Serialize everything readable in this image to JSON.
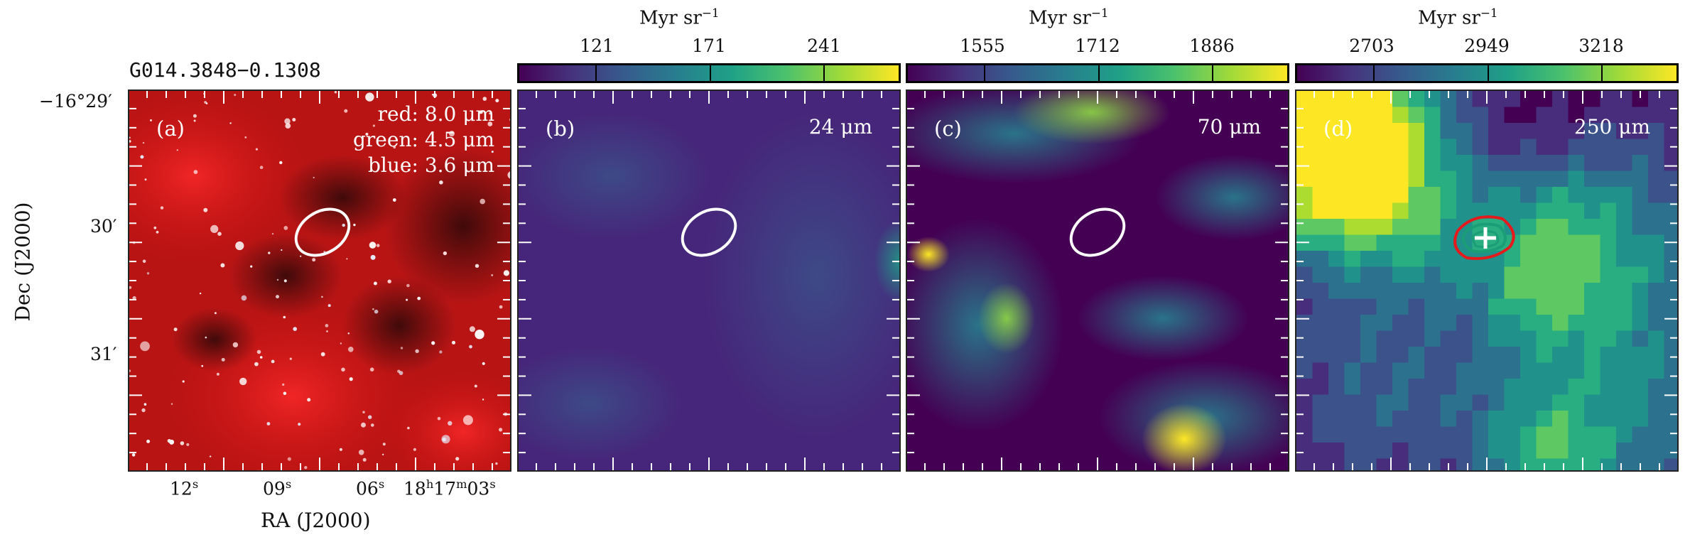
{
  "source_name": "G014.3848−0.1308",
  "axes": {
    "dec_title": "Dec (J2000)",
    "ra_title": "RA (J2000)",
    "dec_ticks": [
      {
        "label": "−16°29′"
      },
      {
        "label": "30′"
      },
      {
        "label": "31′"
      }
    ],
    "ra_ticks": [
      {
        "num": "12",
        "sup": "s",
        "rest": ""
      },
      {
        "num": "09",
        "sup": "s",
        "rest": ""
      },
      {
        "num": "06",
        "sup": "s",
        "rest": ""
      },
      {
        "num": "18",
        "sup": "h",
        "rest": "17",
        "sup2": "m",
        "rest2": "03",
        "sup3": "s"
      }
    ]
  },
  "panels": [
    {
      "letter": "(a)",
      "legend": [
        "red: 8.0 μm",
        "green: 4.5 μm",
        "blue: 3.6 μm"
      ]
    },
    {
      "letter": "(b)",
      "wavelength": "24 μm",
      "colorbar": {
        "unit": "Myr sr−1",
        "ticks": [
          "121",
          "171",
          "241"
        ]
      }
    },
    {
      "letter": "(c)",
      "wavelength": "70 μm",
      "colorbar": {
        "unit": "Myr sr−1",
        "ticks": [
          "1555",
          "1712",
          "1886"
        ]
      }
    },
    {
      "letter": "(d)",
      "wavelength": "250 μm",
      "colorbar": {
        "unit": "Myr sr−1",
        "ticks": [
          "2703",
          "2949",
          "3218"
        ]
      }
    }
  ],
  "colors": {
    "viridis_dark": "#440154",
    "viridis_mid": "#21918c",
    "viridis_light": "#fde725",
    "ellipse": "#ffffff",
    "contour_red": "#e41a1c",
    "contour_teal": "#1b9e77",
    "cross": "#ffffff"
  }
}
